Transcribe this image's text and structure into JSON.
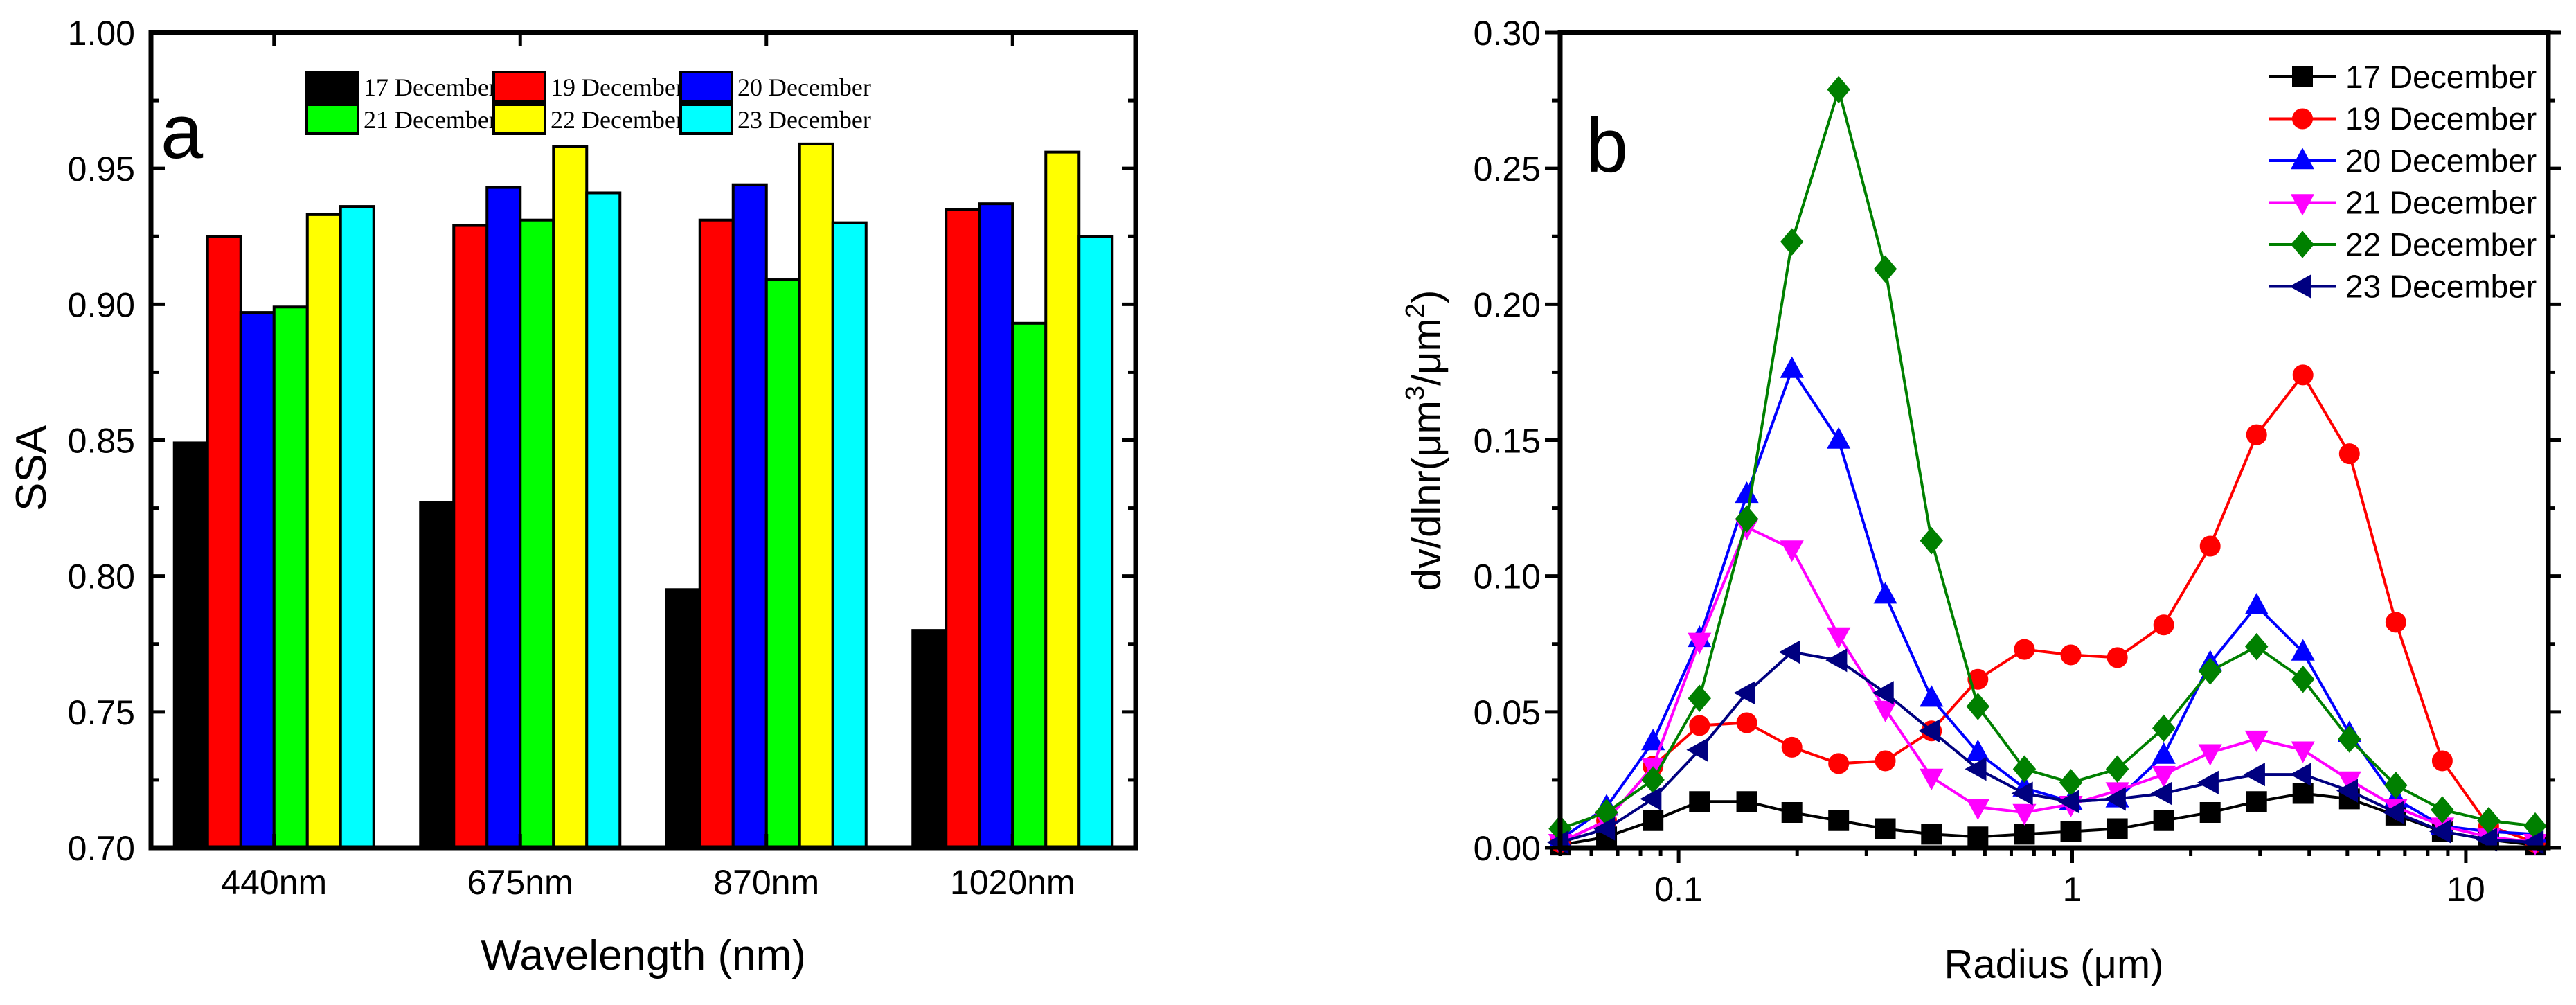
{
  "chart_data": [
    {
      "type": "bar",
      "panel_label": "a",
      "title": "",
      "xlabel": "Wavelength (nm)",
      "ylabel": "SSA",
      "ylim": [
        0.7,
        1.0
      ],
      "yticks": [
        "0.70",
        "0.75",
        "0.80",
        "0.85",
        "0.90",
        "0.95",
        "1.00"
      ],
      "categories": [
        "440nm",
        "675nm",
        "870nm",
        "1020nm"
      ],
      "legend_placement": "top-center",
      "series": [
        {
          "name": "17 December",
          "color": "#000000",
          "values": [
            0.849,
            0.827,
            0.795,
            0.78
          ]
        },
        {
          "name": "19 December",
          "color": "#ff0000",
          "values": [
            0.925,
            0.929,
            0.931,
            0.935
          ]
        },
        {
          "name": "20 December",
          "color": "#0000ff",
          "values": [
            0.897,
            0.943,
            0.944,
            0.937
          ]
        },
        {
          "name": "21 December",
          "color": "#00ff00",
          "values": [
            0.899,
            0.931,
            0.909,
            0.893
          ]
        },
        {
          "name": "22 December",
          "color": "#ffff00",
          "values": [
            0.933,
            0.958,
            0.959,
            0.956
          ]
        },
        {
          "name": "23 December",
          "color": "#00ffff",
          "values": [
            0.936,
            0.941,
            0.93,
            0.925
          ]
        }
      ]
    },
    {
      "type": "line",
      "panel_label": "b",
      "title": "",
      "xlabel": "Radius (μm)",
      "ylabel_parts": [
        "dv/dlnr(μm",
        "3",
        "/μm",
        "2",
        ")"
      ],
      "xscale": "log",
      "xlim": [
        0.05,
        16.2
      ],
      "ylim": [
        0,
        0.3
      ],
      "xticks": [
        {
          "value": 0.1,
          "label": "0.1"
        },
        {
          "value": 1,
          "label": "1"
        },
        {
          "value": 10,
          "label": "10"
        }
      ],
      "yticks": [
        "0.00",
        "0.05",
        "0.10",
        "0.15",
        "0.20",
        "0.25",
        "0.30"
      ],
      "legend_placement": "top-right",
      "x": [
        0.05,
        0.0656,
        0.0861,
        0.113,
        0.149,
        0.194,
        0.255,
        0.335,
        0.439,
        0.576,
        0.756,
        0.992,
        1.302,
        1.708,
        2.241,
        2.94,
        3.857,
        5.061,
        6.641,
        8.713,
        11.43,
        15.0
      ],
      "series": [
        {
          "name": "17 December",
          "color": "#000000",
          "marker": "square",
          "values": [
            0.001,
            0.004,
            0.01,
            0.017,
            0.017,
            0.013,
            0.01,
            0.007,
            0.005,
            0.004,
            0.005,
            0.006,
            0.007,
            0.01,
            0.013,
            0.017,
            0.02,
            0.018,
            0.012,
            0.006,
            0.003,
            0.001
          ]
        },
        {
          "name": "19 December",
          "color": "#ff0000",
          "marker": "circle",
          "values": [
            0.002,
            0.01,
            0.03,
            0.045,
            0.046,
            0.037,
            0.031,
            0.032,
            0.043,
            0.062,
            0.073,
            0.071,
            0.07,
            0.082,
            0.111,
            0.152,
            0.174,
            0.145,
            0.083,
            0.032,
            0.008,
            0.002
          ]
        },
        {
          "name": "20 December",
          "color": "#0000ff",
          "marker": "triangle-up",
          "values": [
            0.003,
            0.015,
            0.039,
            0.077,
            0.13,
            0.176,
            0.15,
            0.093,
            0.055,
            0.035,
            0.022,
            0.017,
            0.018,
            0.034,
            0.068,
            0.089,
            0.072,
            0.042,
            0.018,
            0.008,
            0.006,
            0.005
          ]
        },
        {
          "name": "21 December",
          "color": "#ff00ff",
          "marker": "triangle-down",
          "values": [
            0.002,
            0.01,
            0.03,
            0.076,
            0.118,
            0.11,
            0.078,
            0.051,
            0.026,
            0.015,
            0.013,
            0.016,
            0.021,
            0.027,
            0.035,
            0.04,
            0.036,
            0.025,
            0.015,
            0.008,
            0.004,
            0.002
          ]
        },
        {
          "name": "22 December",
          "color": "#008000",
          "marker": "diamond",
          "values": [
            0.007,
            0.013,
            0.025,
            0.055,
            0.121,
            0.223,
            0.279,
            0.213,
            0.113,
            0.052,
            0.029,
            0.024,
            0.029,
            0.044,
            0.065,
            0.074,
            0.062,
            0.04,
            0.023,
            0.014,
            0.01,
            0.008
          ]
        },
        {
          "name": "23 December",
          "color": "#000080",
          "marker": "triangle-left",
          "values": [
            0.002,
            0.007,
            0.018,
            0.036,
            0.057,
            0.072,
            0.069,
            0.057,
            0.043,
            0.029,
            0.02,
            0.017,
            0.018,
            0.02,
            0.024,
            0.027,
            0.027,
            0.021,
            0.013,
            0.006,
            0.003,
            0.002
          ]
        }
      ]
    }
  ]
}
